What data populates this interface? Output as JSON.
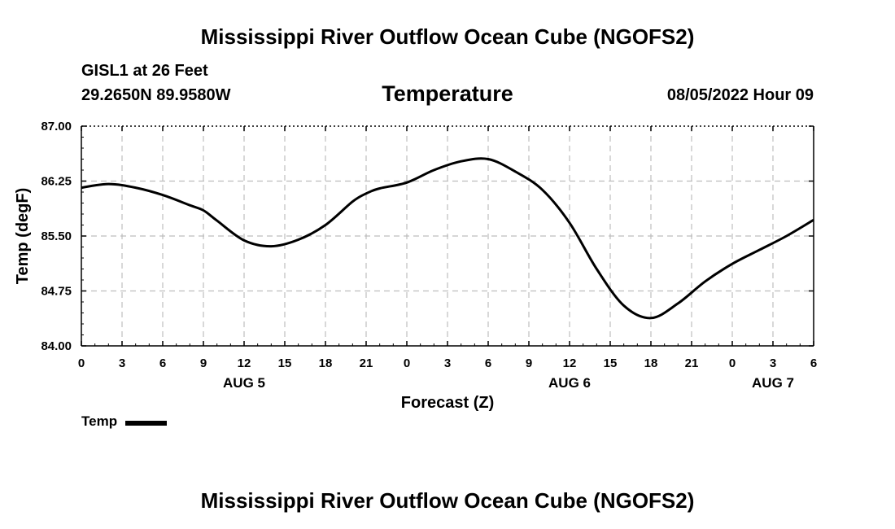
{
  "page": {
    "title": "Mississippi River Outflow Ocean Cube (NGOFS2)",
    "footer_title": "Mississippi River Outflow Ocean Cube (NGOFS2)",
    "station": "GISL1 at 26 Feet",
    "coordinates": "29.2650N  89.9580W",
    "subtitle": "Temperature",
    "datetime": "08/05/2022 Hour 09"
  },
  "chart_data": {
    "type": "line",
    "title": "Temperature",
    "xlabel": "Forecast (Z)",
    "ylabel": "Temp (degF)",
    "ylim": [
      84.0,
      87.0
    ],
    "xlim": [
      0,
      54
    ],
    "y_ticks": [
      "84.00",
      "84.75",
      "85.50",
      "86.25",
      "87.00"
    ],
    "y_tick_values": [
      84.0,
      84.75,
      85.5,
      86.25,
      87.0
    ],
    "x_tick_hours": [
      0,
      3,
      6,
      9,
      12,
      15,
      18,
      21,
      24,
      27,
      30,
      33,
      36,
      39,
      42,
      45,
      48,
      51,
      54
    ],
    "x_tick_labels": [
      "0",
      "3",
      "6",
      "9",
      "12",
      "15",
      "18",
      "21",
      "0",
      "3",
      "6",
      "9",
      "12",
      "15",
      "18",
      "21",
      "0",
      "3",
      "6"
    ],
    "day_labels": [
      {
        "label": "AUG 5",
        "hour": 12
      },
      {
        "label": "AUG 6",
        "hour": 36
      },
      {
        "label": "AUG 7",
        "hour": 51
      }
    ],
    "grid": true,
    "legend": {
      "position": "bottom-left",
      "entries": [
        "Temp"
      ]
    },
    "series": [
      {
        "name": "Temp",
        "color": "#000000",
        "x": [
          0,
          2,
          4,
          6,
          8,
          9,
          10,
          12,
          14,
          16,
          18,
          20,
          21,
          22,
          24,
          26,
          28,
          30,
          32,
          34,
          36,
          38,
          40,
          42,
          44,
          46,
          48,
          50,
          52,
          54
        ],
        "values": [
          86.16,
          86.21,
          86.16,
          86.06,
          85.92,
          85.85,
          85.71,
          85.44,
          85.36,
          85.45,
          85.65,
          85.97,
          86.08,
          86.15,
          86.23,
          86.4,
          86.52,
          86.55,
          86.38,
          86.13,
          85.68,
          85.05,
          84.55,
          84.38,
          84.58,
          84.88,
          85.12,
          85.31,
          85.5,
          85.72
        ]
      }
    ]
  }
}
